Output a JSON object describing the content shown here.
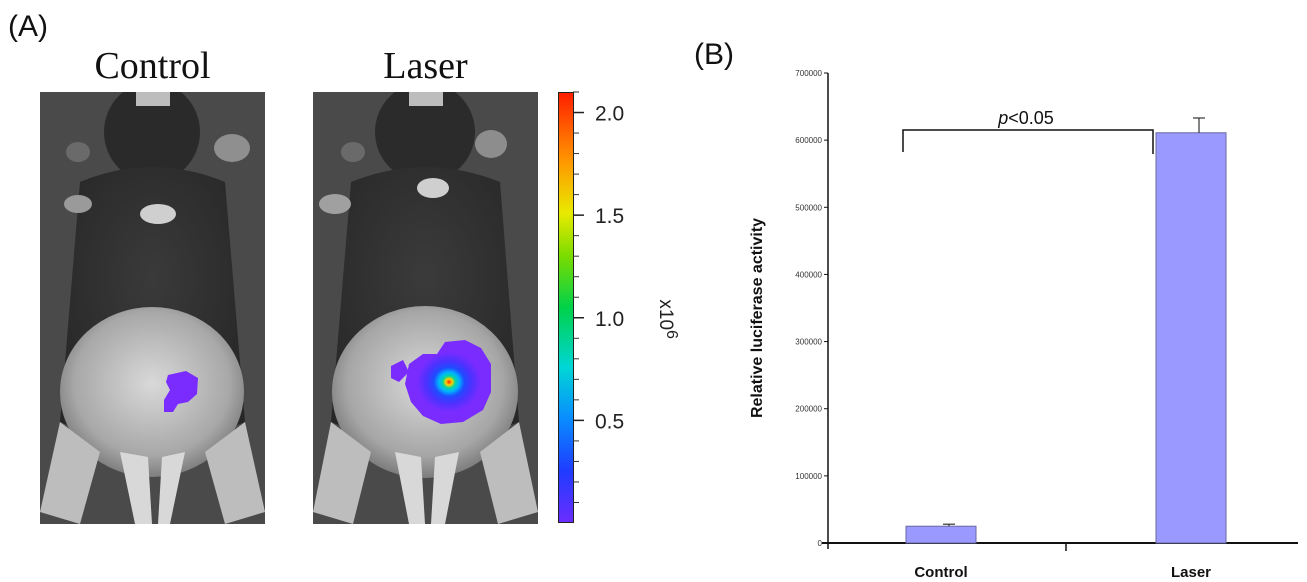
{
  "panels": {
    "a_label": "(A)",
    "b_label": "(B)"
  },
  "imaging": {
    "images": [
      {
        "title": "Control",
        "signal": "weak"
      },
      {
        "title": "Laser",
        "signal": "strong"
      }
    ],
    "colorbar": {
      "min": 0.0,
      "max": 2.1,
      "ticks": [
        "0.5",
        "1.0",
        "1.5",
        "2.0"
      ],
      "unit_base": "x10",
      "unit_exp": "6",
      "colors": [
        "#6a2dff",
        "#1f3cff",
        "#0a8cff",
        "#00d6d6",
        "#00d24a",
        "#7bdc00",
        "#e8ea00",
        "#ff9800",
        "#ff1f00"
      ]
    }
  },
  "chart_data": {
    "type": "bar",
    "categories": [
      "Control",
      "Laser"
    ],
    "values": [
      25000,
      611000
    ],
    "errors": [
      3000,
      22000
    ],
    "ylabel": "Relative luciferase activity",
    "xlabel": "",
    "ylim": [
      0,
      700000
    ],
    "yticks": [
      "0",
      "100000",
      "200000",
      "300000",
      "400000",
      "500000",
      "600000",
      "700000"
    ],
    "bar_color": "#9999ff",
    "significance": {
      "p_italic": "p",
      "text": "<0.05"
    },
    "grid": false
  }
}
